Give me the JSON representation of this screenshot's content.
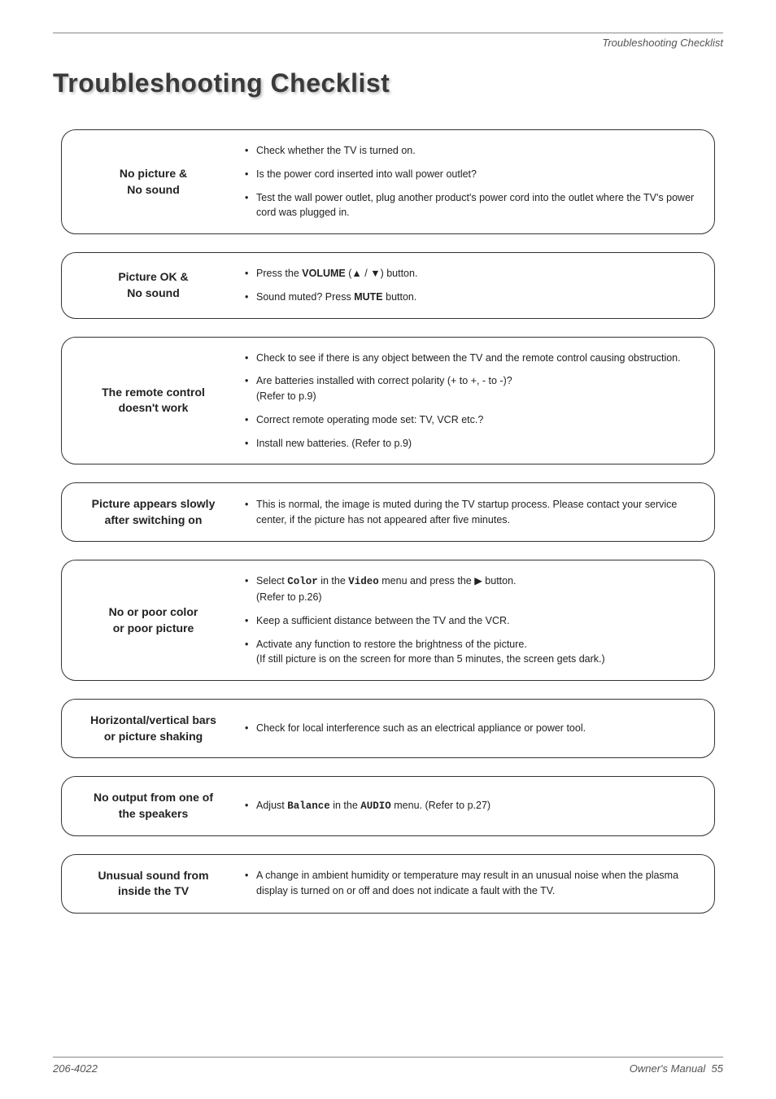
{
  "header": {
    "running_title": "Troubleshooting Checklist"
  },
  "title": "Troubleshooting Checklist",
  "sections": [
    {
      "label_line1": "No picture &",
      "label_line2": "No sound",
      "items": [
        {
          "text": "Check whether the TV is turned on."
        },
        {
          "text": "Is the power cord inserted into wall power outlet?"
        },
        {
          "text": "Test the wall power outlet, plug another product's power cord into the outlet where the TV's power cord was plugged in."
        }
      ]
    },
    {
      "label_line1": "Picture OK &",
      "label_line2": "No sound",
      "items": [
        {
          "html": "Press the <span class='bold'>VOLUME</span> (▲ / ▼) button."
        },
        {
          "html": "Sound muted? Press <span class='bold'>MUTE</span> button."
        }
      ]
    },
    {
      "label_line1": "The remote control",
      "label_line2": "doesn't work",
      "items": [
        {
          "text": "Check to see if there is any object between the TV and the remote control causing obstruction."
        },
        {
          "text": "Are batteries installed with correct polarity (+ to +, - to -)?\n(Refer to p.9)"
        },
        {
          "text": "Correct remote operating mode set: TV, VCR etc.?"
        },
        {
          "text": "Install new batteries. (Refer to p.9)"
        }
      ]
    },
    {
      "label_line1": "Picture appears slowly",
      "label_line2": "after switching on",
      "items": [
        {
          "text": "This is normal, the image is muted during the TV startup process. Please contact your service center, if the picture has not appeared after five minutes."
        }
      ]
    },
    {
      "label_line1": "No or poor color",
      "label_line2": "or poor picture",
      "items": [
        {
          "html": "Select <span class='mono'>Color</span> in the <span class='mono'>Video</span> menu and press the ▶ button.<br>(Refer to p.26)"
        },
        {
          "text": "Keep a sufficient distance between the TV and the VCR."
        },
        {
          "text": "Activate any function to restore the brightness of the picture.\n(If still picture is on the screen for more than 5 minutes, the screen gets dark.)"
        }
      ]
    },
    {
      "label_line1": "Horizontal/vertical bars",
      "label_line2": "or picture shaking",
      "items": [
        {
          "text": "Check for local interference such as an electrical appliance or power tool."
        }
      ]
    },
    {
      "label_line1": "No output from one of",
      "label_line2": "the speakers",
      "items": [
        {
          "html": "Adjust <span class='mono'>Balance</span> in the <span class='mono'>AUDIO</span> menu. (Refer to p.27)"
        }
      ]
    },
    {
      "label_line1": "Unusual sound from",
      "label_line2": "inside the TV",
      "items": [
        {
          "text": "A change in ambient humidity or temperature may result in an unusual noise when the plasma display is turned on or off and does not indicate a fault with the TV."
        }
      ]
    }
  ],
  "footer": {
    "left": "206-4022",
    "right_label": "Owner's Manual",
    "page_num": "55"
  }
}
